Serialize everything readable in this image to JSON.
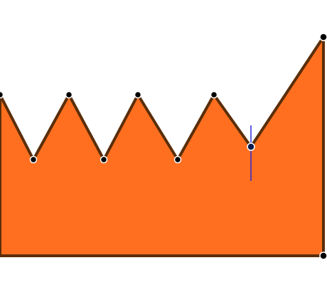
{
  "colors": {
    "background": "#ffffff",
    "shape_fill": "#ff6f1f",
    "shape_stroke": "#5a2e0a",
    "vertex_fill": "#000000",
    "vertex_stroke": "#ffffff",
    "selected_vertex_fill": "#0a1a4a",
    "cursor_line": "#2a2ad6"
  },
  "diagram": {
    "shape": "polygon",
    "vertex_count": 11,
    "selected_vertex_index": 8,
    "cursor_icon": "vertical-line-cursor"
  }
}
